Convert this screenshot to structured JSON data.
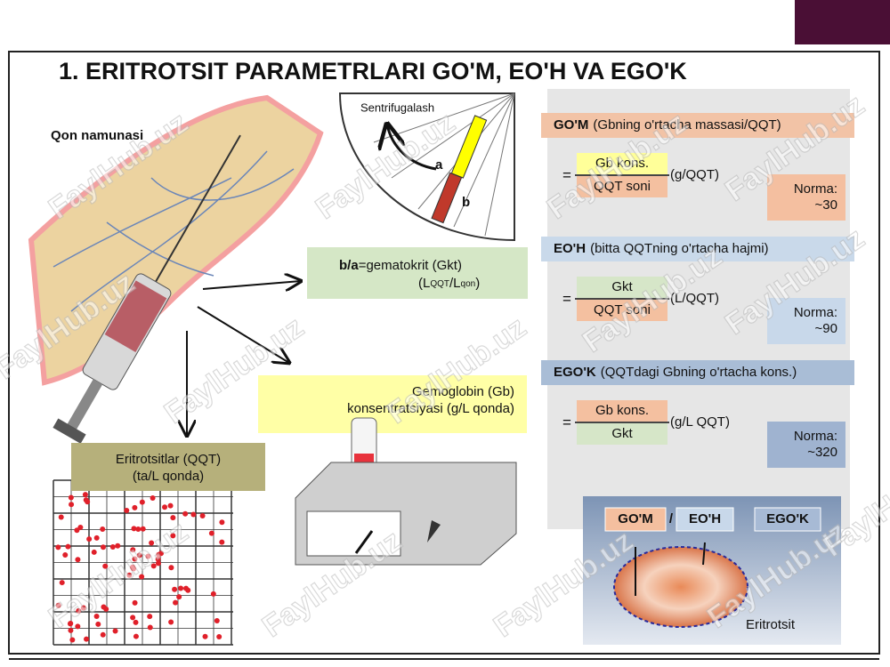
{
  "header": {
    "title": "1.  ERITROTSIT PARAMETRLARI GO'M, EO'H VA EGO'K"
  },
  "sample": {
    "label": "Qon namunasi"
  },
  "centrifuge": {
    "label": "Sentrifugalash",
    "a": "a",
    "b": "b"
  },
  "hematocrit": {
    "formula": "b/a",
    "text": "=gematokrit (Gkt)",
    "units": [
      "(L",
      "QQT",
      "/L",
      "qon",
      ")"
    ]
  },
  "hemoglobin": {
    "lines": [
      "Gemoglobin (Gb)",
      "konsentratsiyasi (g/L qonda)"
    ]
  },
  "erythrocytes": {
    "lines": [
      "Eritrotsitlar (QQT)",
      "(ta/L qonda)"
    ]
  },
  "indices": [
    {
      "abbr": "GO'M",
      "description": "(Gbning o'rtacha massasi/QQT)",
      "equals": "=",
      "numerator": "Gb kons.",
      "denominator": "QQT soni",
      "unit": "(g/QQT)",
      "norm_label": "Norma:",
      "norm_value": "~30"
    },
    {
      "abbr": "EO'H",
      "description": "(bitta QQTning o'rtacha hajmi)",
      "equals": "=",
      "numerator": "Gkt",
      "denominator": "QQT soni",
      "unit": "(L/QQT)",
      "norm_label": "Norma:",
      "norm_value": "~90"
    },
    {
      "abbr": "EGO'K",
      "description": "(QQTdagi Gbning o'rtacha kons.)",
      "equals": "=",
      "numerator": "Gb kons.",
      "denominator": "Gkt",
      "unit": "(g/L QQT)",
      "norm_label": "Norma:",
      "norm_value": "~320"
    }
  ],
  "cell_panel": {
    "labels": [
      "GO'M",
      "/",
      "EO'H",
      "EGO'K"
    ],
    "caption": "Eritrotsit"
  },
  "watermark": "FaylHub.uz"
}
